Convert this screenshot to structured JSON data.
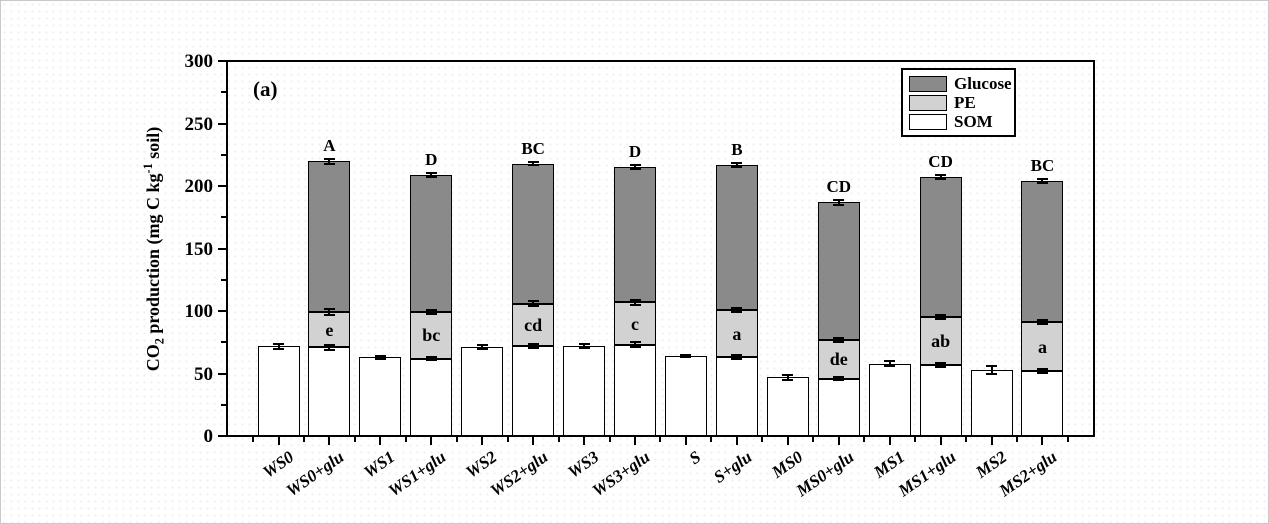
{
  "chart_data": {
    "type": "bar",
    "stacked": true,
    "title": "(a)",
    "ylabel": "CO2 production (mg C kg-1 soil)",
    "ylabel_parts": {
      "pre": "CO",
      "sub": "2",
      "mid": " production (mg C kg",
      "sup": "-1",
      "post": " soil)"
    },
    "xlabel": "",
    "ylim": [
      0,
      300
    ],
    "yticks_major": [
      0,
      50,
      100,
      150,
      200,
      250,
      300
    ],
    "ytick_minor_step": 25,
    "grid": false,
    "legend_position": "top-right",
    "legend": [
      {
        "label": "Glucose",
        "color": "#8a8a8a"
      },
      {
        "label": "PE",
        "color": "#d2d2d2"
      },
      {
        "label": "SOM",
        "color": "#ffffff"
      }
    ],
    "series_order_bottom_to_top": [
      "SOM",
      "PE",
      "Glucose"
    ],
    "categories": [
      "WS0",
      "WS0+glu",
      "WS1",
      "WS1+glu",
      "WS2",
      "WS2+glu",
      "WS3",
      "WS3+glu",
      "S",
      "S+glu",
      "MS0",
      "MS0+glu",
      "MS1",
      "MS1+glu",
      "MS2",
      "MS2+glu"
    ],
    "bars": [
      {
        "label": "WS0",
        "som": 72,
        "pe_top": null,
        "total": null,
        "som_err": 2,
        "pe_err": null,
        "total_err": null,
        "sig": "",
        "pe_sig": ""
      },
      {
        "label": "WS0+glu",
        "som": 71,
        "pe_top": 99,
        "total": 220,
        "som_err": 2,
        "pe_err": 2.5,
        "total_err": 2,
        "sig": "A",
        "pe_sig": "e"
      },
      {
        "label": "WS1",
        "som": 63,
        "pe_top": null,
        "total": null,
        "som_err": 1,
        "pe_err": null,
        "total_err": null,
        "sig": "",
        "pe_sig": ""
      },
      {
        "label": "WS1+glu",
        "som": 62,
        "pe_top": 99,
        "total": 209,
        "som_err": 1.5,
        "pe_err": 1.5,
        "total_err": 1.5,
        "sig": "D",
        "pe_sig": "bc"
      },
      {
        "label": "WS2",
        "som": 71,
        "pe_top": null,
        "total": null,
        "som_err": 1.5,
        "pe_err": null,
        "total_err": null,
        "sig": "",
        "pe_sig": ""
      },
      {
        "label": "WS2+glu",
        "som": 72,
        "pe_top": 106,
        "total": 218,
        "som_err": 1.5,
        "pe_err": 2,
        "total_err": 1,
        "sig": "BC",
        "pe_sig": "cd"
      },
      {
        "label": "WS3",
        "som": 72,
        "pe_top": null,
        "total": null,
        "som_err": 1.5,
        "pe_err": null,
        "total_err": null,
        "sig": "",
        "pe_sig": ""
      },
      {
        "label": "WS3+glu",
        "som": 73,
        "pe_top": 107,
        "total": 215,
        "som_err": 2,
        "pe_err": 2,
        "total_err": 1.5,
        "sig": "D",
        "pe_sig": "c"
      },
      {
        "label": "S",
        "som": 64,
        "pe_top": null,
        "total": null,
        "som_err": 1,
        "pe_err": null,
        "total_err": null,
        "sig": "",
        "pe_sig": ""
      },
      {
        "label": "S+glu",
        "som": 63,
        "pe_top": 101,
        "total": 217,
        "som_err": 1.5,
        "pe_err": 1.5,
        "total_err": 1.5,
        "sig": "B",
        "pe_sig": "a"
      },
      {
        "label": "MS0",
        "som": 47,
        "pe_top": null,
        "total": null,
        "som_err": 2,
        "pe_err": null,
        "total_err": null,
        "sig": "",
        "pe_sig": ""
      },
      {
        "label": "MS0+glu",
        "som": 46,
        "pe_top": 77,
        "total": 187,
        "som_err": 1.5,
        "pe_err": 1.5,
        "total_err": 2,
        "sig": "CD",
        "pe_sig": "de"
      },
      {
        "label": "MS1",
        "som": 58,
        "pe_top": null,
        "total": null,
        "som_err": 2,
        "pe_err": null,
        "total_err": null,
        "sig": "",
        "pe_sig": ""
      },
      {
        "label": "MS1+glu",
        "som": 57,
        "pe_top": 95,
        "total": 207,
        "som_err": 1.5,
        "pe_err": 1.5,
        "total_err": 1.5,
        "sig": "CD",
        "pe_sig": "ab"
      },
      {
        "label": "MS2",
        "som": 53,
        "pe_top": null,
        "total": null,
        "som_err": 3,
        "pe_err": null,
        "total_err": null,
        "sig": "",
        "pe_sig": ""
      },
      {
        "label": "MS2+glu",
        "som": 52,
        "pe_top": 91,
        "total": 204,
        "som_err": 1.5,
        "pe_err": 1.5,
        "total_err": 1.5,
        "sig": "BC",
        "pe_sig": "a"
      }
    ]
  },
  "colors": {
    "axis": "#000000",
    "bar_border": "#000000",
    "glucose": "#8a8a8a",
    "pe": "#d2d2d2",
    "som": "#ffffff",
    "background": "#ffffff"
  }
}
